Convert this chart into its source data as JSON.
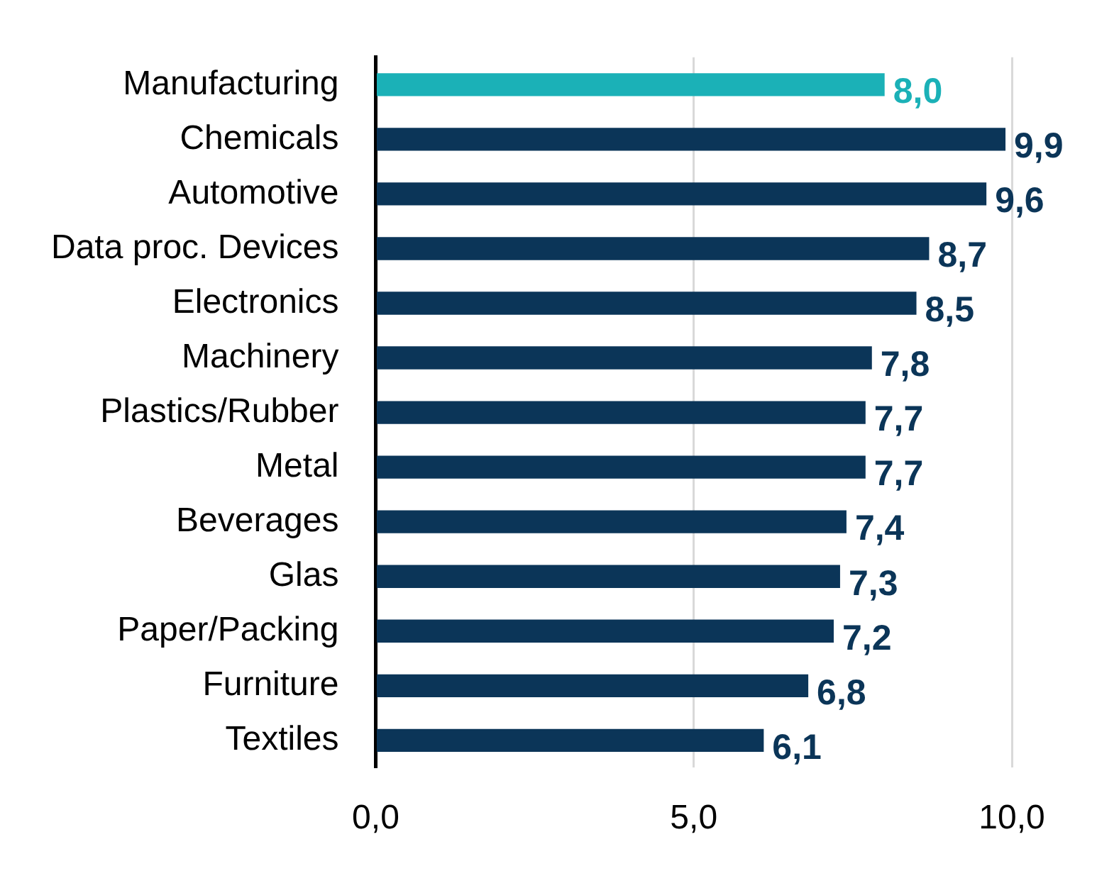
{
  "chart_data": {
    "type": "bar",
    "orientation": "horizontal",
    "categories": [
      "Manufacturing",
      "Chemicals",
      "Automotive",
      "Data proc. Devices",
      "Electronics",
      "Machinery",
      "Plastics/Rubber",
      "Metal",
      "Beverages",
      "Glas",
      "Paper/Packing",
      "Furniture",
      "Textiles"
    ],
    "values": [
      8.0,
      9.9,
      9.6,
      8.7,
      8.5,
      7.8,
      7.7,
      7.7,
      7.4,
      7.3,
      7.2,
      6.8,
      6.1
    ],
    "colors": [
      "#1bb1b7",
      "#0b3558",
      "#0b3558",
      "#0b3558",
      "#0b3558",
      "#0b3558",
      "#0b3558",
      "#0b3558",
      "#0b3558",
      "#0b3558",
      "#0b3558",
      "#0b3558",
      "#0b3558"
    ],
    "value_labels": [
      "8,0",
      "9,9",
      "9,6",
      "8,7",
      "8,5",
      "7,8",
      "7,7",
      "7,7",
      "7,4",
      "7,3",
      "7,2",
      "6,8",
      "6,1"
    ],
    "xlim": [
      0,
      10
    ],
    "xticks": [
      {
        "value": 0,
        "label": "0,0"
      },
      {
        "value": 5,
        "label": "5,0"
      },
      {
        "value": 10,
        "label": "10,0"
      }
    ],
    "grid": "x"
  }
}
